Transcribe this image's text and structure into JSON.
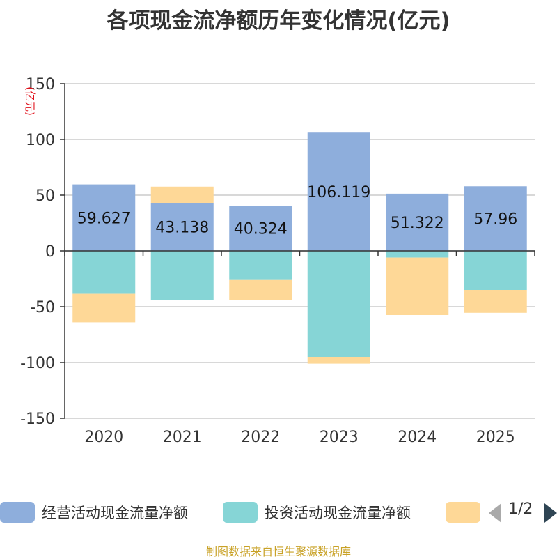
{
  "chart_data": {
    "type": "bar",
    "stacked": true,
    "title": "各项现金流净额历年变化情况(亿元)",
    "ylabel": "(亿元)",
    "ylim": [
      -150,
      150
    ],
    "yticks": [
      150,
      100,
      50,
      0,
      -50,
      -100,
      -150
    ],
    "categories": [
      "2020",
      "2021",
      "2022",
      "2023",
      "2024",
      "2025"
    ],
    "series": [
      {
        "name": "经营活动现金流量净额",
        "color": "#8eaedc",
        "values": [
          59.627,
          43.138,
          40.324,
          106.119,
          51.322,
          57.96
        ],
        "labels": [
          "59.627",
          "43.138",
          "40.324",
          "106.119",
          "51.322",
          "57.96"
        ]
      },
      {
        "name": "投资活动现金流量净额",
        "color": "#86d5d6",
        "values": [
          -38.5,
          -44.0,
          -25.5,
          -95.0,
          -6.0,
          -35.0
        ]
      },
      {
        "name": "",
        "color": "#fed897",
        "values": [
          -25.5,
          14.5,
          -18.5,
          -6.0,
          -51.5,
          -20.5
        ]
      }
    ],
    "legend_position": "bottom",
    "pager": "1/2"
  },
  "source": "制图数据来自恒生聚源数据库"
}
